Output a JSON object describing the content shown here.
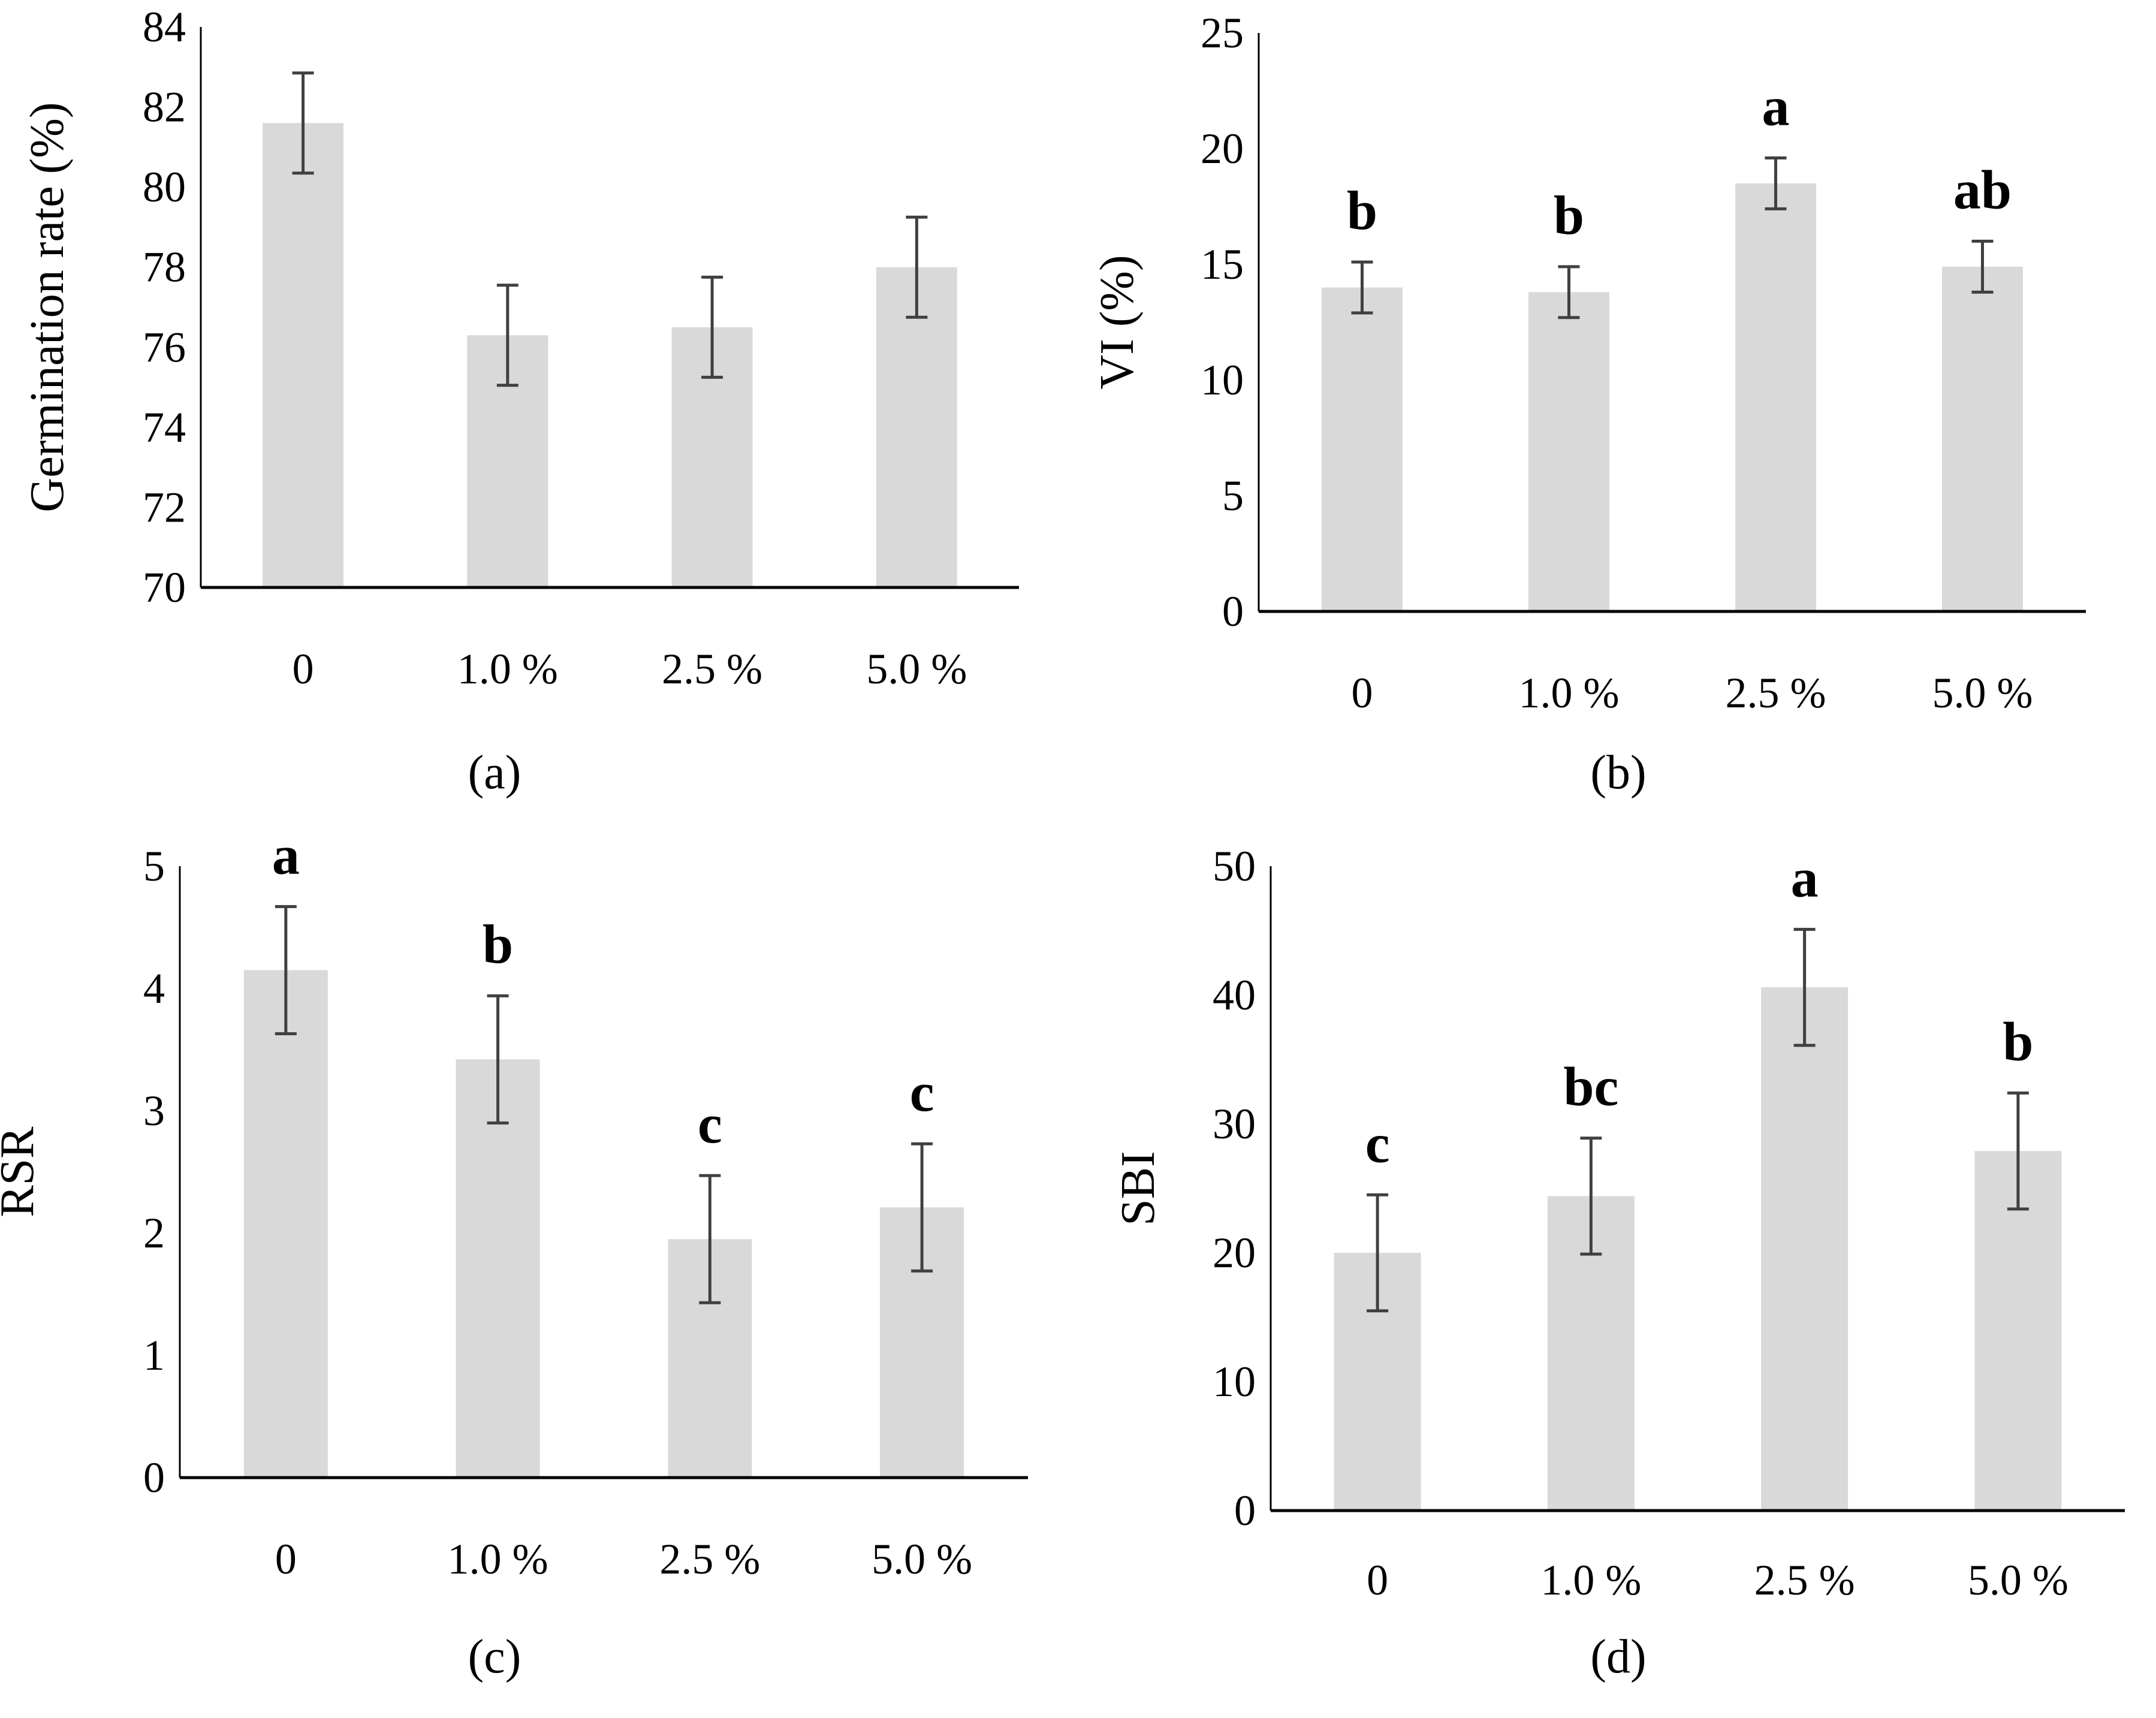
{
  "colors": {
    "bar": "#d9d9d9",
    "axis": "#000000",
    "error_bar": "#404040",
    "text": "#000000"
  },
  "chart_data": [
    {
      "panel": "(a)",
      "type": "bar",
      "ylabel": "Germination rate (%)",
      "categories": [
        "0",
        "1.0 %",
        "2.5 %",
        "5.0 %"
      ],
      "values": [
        81.6,
        76.3,
        76.5,
        78.0
      ],
      "errors": [
        1.25,
        1.25,
        1.25,
        1.25
      ],
      "significance": [
        "",
        "",
        "",
        ""
      ],
      "ylim": [
        70,
        84
      ],
      "yticks": [
        "70",
        "72",
        "74",
        "76",
        "78",
        "80",
        "82",
        "84"
      ]
    },
    {
      "panel": "(b)",
      "type": "bar",
      "ylabel": "VI (%)",
      "categories": [
        "0",
        "1.0 %",
        "2.5 %",
        "5.0 %"
      ],
      "values": [
        14.0,
        13.8,
        18.5,
        14.9
      ],
      "errors": [
        1.1,
        1.1,
        1.1,
        1.1
      ],
      "significance": [
        "b",
        "b",
        "a",
        "ab"
      ],
      "ylim": [
        0,
        25
      ],
      "yticks": [
        "0",
        "5",
        "10",
        "15",
        "20",
        "25"
      ]
    },
    {
      "panel": "(c)",
      "type": "bar",
      "ylabel": "RSR",
      "categories": [
        "0",
        "1.0 %",
        "2.5 %",
        "5.0 %"
      ],
      "values": [
        4.15,
        3.42,
        1.95,
        2.21
      ],
      "errors": [
        0.52,
        0.52,
        0.52,
        0.52
      ],
      "significance": [
        "a",
        "b",
        "c",
        "c"
      ],
      "ylim": [
        0,
        5
      ],
      "yticks": [
        "0",
        "1",
        "2",
        "3",
        "4",
        "5"
      ]
    },
    {
      "panel": "(d)",
      "type": "bar",
      "ylabel": "SBI",
      "categories": [
        "0",
        "1.0 %",
        "2.5 %",
        "5.0 %"
      ],
      "values": [
        20.0,
        24.4,
        40.6,
        27.9
      ],
      "errors": [
        4.5,
        4.5,
        4.5,
        4.5
      ],
      "significance": [
        "c",
        "bc",
        "a",
        "b"
      ],
      "ylim": [
        0,
        50
      ],
      "yticks": [
        "0",
        "10",
        "20",
        "30",
        "40",
        "50"
      ]
    }
  ]
}
